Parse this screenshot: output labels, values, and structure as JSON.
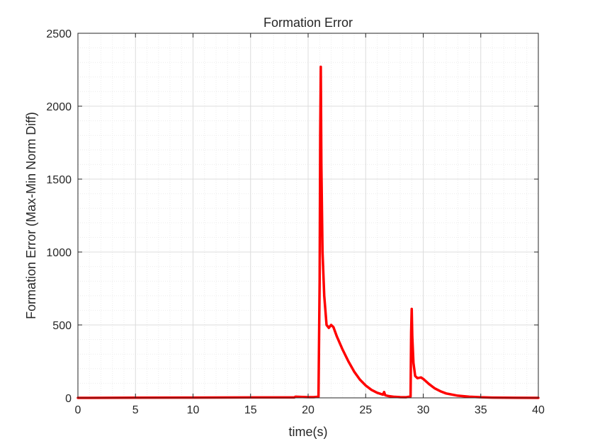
{
  "chart_data": {
    "type": "line",
    "title": "Formation Error",
    "xlabel": "time(s)",
    "ylabel": "Formation Error (Max-Min Norm Diff)",
    "xlim": [
      0,
      40
    ],
    "ylim": [
      0,
      2500
    ],
    "xticks": [
      0,
      5,
      10,
      15,
      20,
      25,
      30,
      35,
      40
    ],
    "yticks": [
      0,
      500,
      1000,
      1500,
      2000,
      2500
    ],
    "xtick_labels": [
      "0",
      "5",
      "10",
      "15",
      "20",
      "25",
      "30",
      "35",
      "40"
    ],
    "ytick_labels": [
      "0",
      "500",
      "1000",
      "1500",
      "2000",
      "2500"
    ],
    "grid": true,
    "minor_grid": true,
    "series": [
      {
        "color": "#ff0000",
        "x": [
          0,
          5,
          10,
          15,
          18.8,
          18.9,
          19.5,
          20.0,
          20.5,
          20.9,
          21.0,
          21.05,
          21.1,
          21.15,
          21.25,
          21.4,
          21.6,
          21.8,
          22.0,
          22.2,
          22.5,
          23.0,
          23.5,
          24.0,
          24.5,
          25.0,
          25.5,
          26.0,
          26.5,
          26.6,
          26.7,
          27.0,
          27.5,
          28.0,
          28.5,
          28.9,
          28.95,
          29.0,
          29.05,
          29.15,
          29.3,
          29.5,
          29.8,
          30.0,
          30.5,
          31.0,
          31.5,
          32.0,
          33.0,
          34.0,
          35.0,
          36.0,
          37.0,
          38.0,
          40.0
        ],
        "y": [
          0,
          1,
          2,
          3,
          3,
          8,
          6,
          5,
          5,
          8,
          800,
          1800,
          2270,
          1600,
          1000,
          700,
          500,
          480,
          500,
          485,
          420,
          330,
          250,
          180,
          125,
          85,
          55,
          35,
          22,
          40,
          18,
          12,
          7,
          5,
          4,
          10,
          450,
          610,
          420,
          240,
          150,
          135,
          140,
          130,
          95,
          65,
          45,
          30,
          15,
          8,
          4,
          2,
          1,
          0.5,
          0
        ]
      }
    ]
  }
}
